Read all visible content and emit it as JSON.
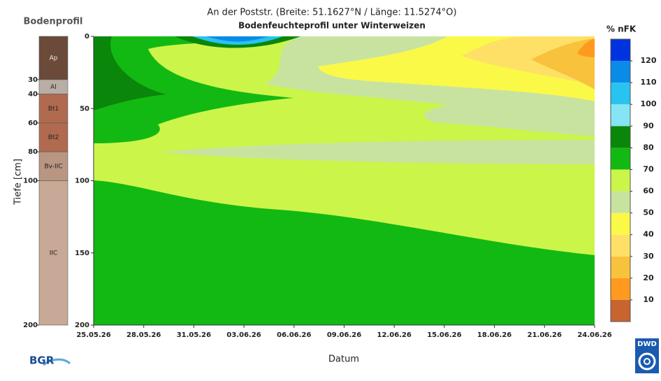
{
  "chart_data": {
    "type": "contour",
    "title": "An der Poststr. (Breite: 51.1627°N / Länge: 11.5274°O)",
    "subtitle": "Bodenfeuchteprofil unter Winterweizen",
    "xlabel": "Datum",
    "ylabel": "Tiefe [cm]",
    "xticks": [
      "25.05.26",
      "28.05.26",
      "31.05.26",
      "03.06.26",
      "06.06.26",
      "09.06.26",
      "12.06.26",
      "15.06.26",
      "18.06.26",
      "21.06.26",
      "24.06.26"
    ],
    "ylim": [
      0,
      200
    ],
    "yticks": [
      0,
      50,
      100,
      150,
      200
    ],
    "colorbar": {
      "title": "% nFK",
      "bins": [
        0,
        10,
        20,
        30,
        40,
        50,
        60,
        70,
        80,
        90,
        100,
        110,
        120,
        130
      ],
      "ticks": [
        10,
        20,
        30,
        40,
        50,
        60,
        70,
        80,
        90,
        100,
        110,
        120
      ],
      "colors": [
        "#c8642f",
        "#ff9a1f",
        "#f9c23c",
        "#ffe066",
        "#fbf947",
        "#c8e3a0",
        "#ccf54a",
        "#13b913",
        "#0a860a",
        "#85e5f5",
        "#28c3f0",
        "#0a8be8",
        "#0033e0"
      ]
    },
    "profile": {
      "title": "Bodenprofil",
      "layers": [
        {
          "label": "Ap",
          "bottom": 30,
          "color": "#6b4a3a"
        },
        {
          "label": "Al",
          "bottom": 40,
          "color": "#b8aea6"
        },
        {
          "label": "Bt1",
          "bottom": 60,
          "color": "#b06a50"
        },
        {
          "label": "Bt2",
          "bottom": 80,
          "color": "#b06a50"
        },
        {
          "label": "Bv-IIC",
          "bottom": 100,
          "color": "#b89682"
        },
        {
          "label": "IIC",
          "bottom": 200,
          "color": "#c8a896"
        }
      ]
    },
    "logos": {
      "left": "BGR",
      "right": "DWD"
    }
  }
}
